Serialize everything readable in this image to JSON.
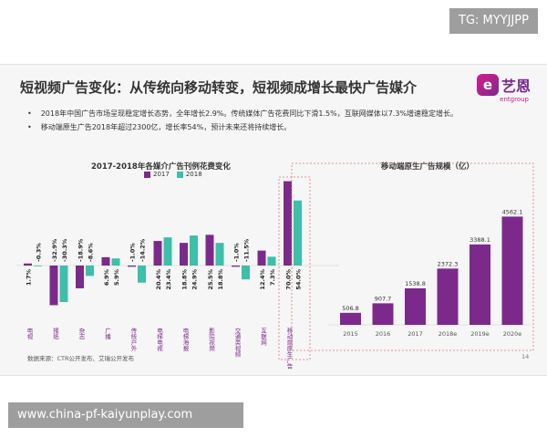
{
  "watermark_top": "TG: MYYJJPP",
  "watermark_bottom": "www.china-pf-kaiyunplay.com",
  "slide": {
    "title": "短视频广告变化：从传统向移动转变，短视频成增长最快广告媒介",
    "logo_mark": "e",
    "logo_text": "艺恩",
    "logo_sub": "entgroup",
    "bullets": [
      "2018年中国广告市场呈现稳定增长态势，全年增长2.9%。传统媒体广告花费同比下滑1.5%，互联网媒体以7.3%增速稳定增长。",
      "移动端原生广告2018年超过2300亿，增长率54%，预计未来还将持续增长。"
    ],
    "source": "数据来源：CTR公开发布、艾瑞公开发布",
    "page_number": "14"
  },
  "chart_data": [
    {
      "type": "bar",
      "title": "2017-2018年各媒介广告刊例花费变化",
      "categories": [
        "电视",
        "报纸",
        "杂志",
        "广播",
        "传统户外",
        "电梯电视",
        "电梯海报",
        "影院视频",
        "交通类视频",
        "互联网",
        "移动端原生广告"
      ],
      "series": [
        {
          "name": "2017",
          "values": [
            1.7,
            -32.9,
            -18.9,
            6.9,
            -1.0,
            20.4,
            18.8,
            25.5,
            -1.0,
            12.4,
            70.0
          ],
          "labels": [
            "1.7%",
            "-32.9%",
            "-18.9%",
            "6.9%",
            "-1.0%",
            "20.4%",
            "18.8%",
            "25.5%",
            "-1.0%",
            "12.4%",
            "70.0%"
          ]
        },
        {
          "name": "2018",
          "values": [
            -0.3,
            -30.3,
            -8.6,
            5.9,
            -14.2,
            23.4,
            24.9,
            18.8,
            -11.5,
            7.3,
            54.0
          ],
          "labels": [
            "-0.3%",
            "-30.3%",
            "-8.6%",
            "5.9%",
            "-14.2%",
            "23.4%",
            "24.9%",
            "18.8%",
            "-11.5%",
            "7.3%",
            "54.0%"
          ]
        }
      ],
      "colors": {
        "2017": "#7b2a8c",
        "2018": "#3dbfaa"
      },
      "highlight_category": "移动端原生广告",
      "legend": "top"
    },
    {
      "type": "bar",
      "title": "移动端原生广告规模（亿）",
      "categories": [
        "2015",
        "2016",
        "2017",
        "2018e",
        "2019e",
        "2020e"
      ],
      "values": [
        506.8,
        907.7,
        1538.8,
        2372.3,
        3388.1,
        4562.1
      ],
      "labels": [
        "506.8",
        "907.7",
        "1538.8",
        "2372.3",
        "3388.1",
        "4562.1"
      ],
      "color": "#7b2a8c"
    }
  ]
}
